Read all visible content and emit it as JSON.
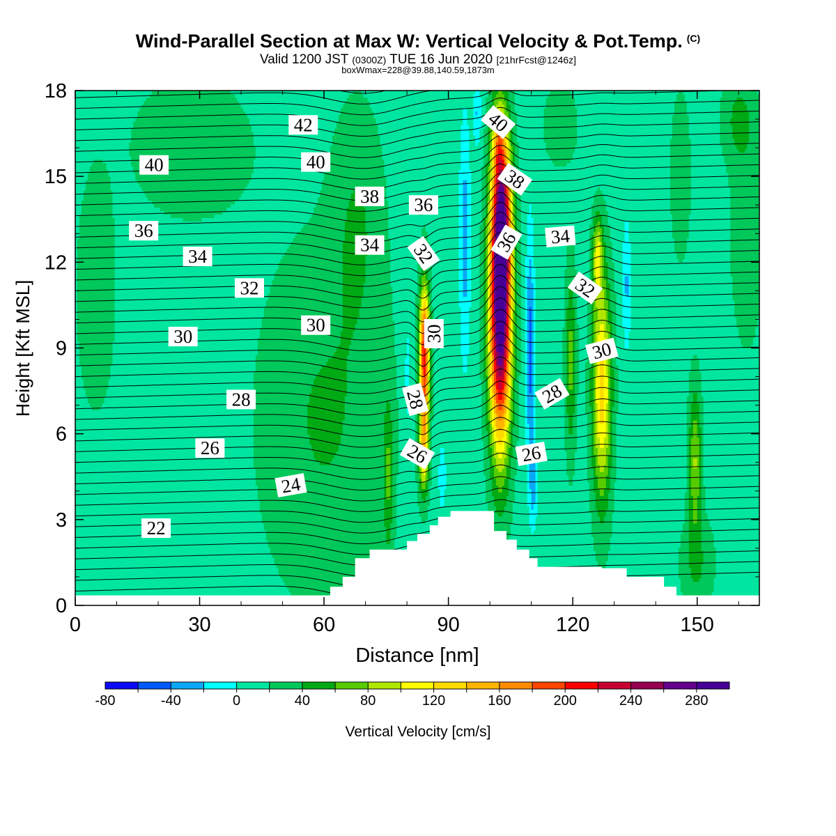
{
  "title": "Wind-Parallel Section at Max W: Vertical Velocity & Pot.Temp.",
  "copyright_mark": "(C)",
  "subtitle": {
    "valid": "Valid 1200 JST",
    "utc": "(0300Z)",
    "date": "TUE 16 Jun 2020",
    "forecast": "[21hrFcst@1246z]"
  },
  "box_info": "boxWmax=228@39.88,140.59,1873m",
  "chart_data": {
    "type": "contour",
    "xlabel": "Distance [nm]",
    "ylabel": "Height [Kft MSL]",
    "xlim": [
      0,
      165
    ],
    "ylim": [
      0,
      18
    ],
    "x_ticks": [
      0,
      30,
      60,
      90,
      120,
      150
    ],
    "y_ticks": [
      0,
      3,
      6,
      9,
      12,
      15,
      18
    ],
    "colorbar": {
      "label": "Vertical Velocity [cm/s]",
      "tick_labels": [
        "-80",
        "-40",
        "0",
        "40",
        "80",
        "120",
        "160",
        "200",
        "240",
        "280"
      ],
      "levels": [
        -80,
        -60,
        -40,
        -20,
        0,
        20,
        40,
        60,
        80,
        100,
        120,
        140,
        160,
        180,
        200,
        220,
        240,
        260,
        280,
        300
      ],
      "colors": [
        "#0a0af5",
        "#005aff",
        "#0aa8f5",
        "#00ffff",
        "#00e6a0",
        "#00c85a",
        "#00aa14",
        "#56cc00",
        "#b0e600",
        "#ffff00",
        "#ffdc00",
        "#ffb400",
        "#ff8c00",
        "#ff4600",
        "#ff0000",
        "#c80032",
        "#960050",
        "#64008c",
        "#460096"
      ]
    },
    "theta_contour_labels": [
      {
        "value": "42",
        "x": 55,
        "z": 16.8,
        "angle": 0
      },
      {
        "value": "40",
        "x": 19,
        "z": 15.4,
        "angle": 0
      },
      {
        "value": "40",
        "x": 58,
        "z": 15.5,
        "angle": 0
      },
      {
        "value": "40",
        "x": 102,
        "z": 16.9,
        "angle": 40
      },
      {
        "value": "38",
        "x": 71,
        "z": 14.3,
        "angle": 0
      },
      {
        "value": "38",
        "x": 106,
        "z": 14.9,
        "angle": 35
      },
      {
        "value": "36",
        "x": 16.5,
        "z": 13.1,
        "angle": 0
      },
      {
        "value": "36",
        "x": 84,
        "z": 14.0,
        "angle": 0
      },
      {
        "value": "36",
        "x": 104,
        "z": 12.7,
        "angle": -60
      },
      {
        "value": "34",
        "x": 29.5,
        "z": 12.2,
        "angle": 0
      },
      {
        "value": "34",
        "x": 71,
        "z": 12.6,
        "angle": 0
      },
      {
        "value": "34",
        "x": 117,
        "z": 12.9,
        "angle": -5
      },
      {
        "value": "32",
        "x": 42,
        "z": 11.1,
        "angle": 0
      },
      {
        "value": "32",
        "x": 84,
        "z": 12.3,
        "angle": 55
      },
      {
        "value": "32",
        "x": 123,
        "z": 11.1,
        "angle": 35
      },
      {
        "value": "30",
        "x": 26,
        "z": 9.4,
        "angle": 0
      },
      {
        "value": "30",
        "x": 58,
        "z": 9.8,
        "angle": 0
      },
      {
        "value": "30",
        "x": 86.5,
        "z": 9.5,
        "angle": -90
      },
      {
        "value": "30",
        "x": 127,
        "z": 8.9,
        "angle": -15
      },
      {
        "value": "28",
        "x": 40,
        "z": 7.2,
        "angle": 0
      },
      {
        "value": "28",
        "x": 82,
        "z": 7.2,
        "angle": 75
      },
      {
        "value": "28",
        "x": 115,
        "z": 7.4,
        "angle": -30
      },
      {
        "value": "26",
        "x": 32.5,
        "z": 5.5,
        "angle": 0
      },
      {
        "value": "26",
        "x": 82.5,
        "z": 5.3,
        "angle": 30
      },
      {
        "value": "26",
        "x": 110,
        "z": 5.3,
        "angle": -10
      },
      {
        "value": "24",
        "x": 52,
        "z": 4.2,
        "angle": -10
      },
      {
        "value": "22",
        "x": 19.5,
        "z": 2.7,
        "angle": 0
      }
    ],
    "terrain_profile": [
      [
        0,
        0.35
      ],
      [
        61.5,
        0.35
      ],
      [
        61.5,
        0.65
      ],
      [
        64.5,
        0.65
      ],
      [
        64.5,
        1.0
      ],
      [
        67.5,
        1.0
      ],
      [
        67.5,
        1.65
      ],
      [
        71,
        1.65
      ],
      [
        71,
        1.95
      ],
      [
        80,
        1.95
      ],
      [
        80,
        2.25
      ],
      [
        82.5,
        2.25
      ],
      [
        82.5,
        2.5
      ],
      [
        85.5,
        2.5
      ],
      [
        85.5,
        2.8
      ],
      [
        87.5,
        2.8
      ],
      [
        87.5,
        3.1
      ],
      [
        90.5,
        3.1
      ],
      [
        90.5,
        3.3
      ],
      [
        101,
        3.3
      ],
      [
        101,
        2.6
      ],
      [
        104,
        2.6
      ],
      [
        104,
        2.3
      ],
      [
        106.5,
        2.3
      ],
      [
        106.5,
        1.95
      ],
      [
        109.5,
        1.95
      ],
      [
        109.5,
        1.65
      ],
      [
        111.5,
        1.65
      ],
      [
        111.5,
        1.35
      ],
      [
        127,
        1.35
      ],
      [
        127,
        1.3
      ],
      [
        133,
        1.3
      ],
      [
        133,
        1.0
      ],
      [
        142,
        1.0
      ],
      [
        142,
        0.65
      ],
      [
        145,
        0.65
      ],
      [
        145,
        0.35
      ],
      [
        165,
        0.35
      ]
    ]
  }
}
